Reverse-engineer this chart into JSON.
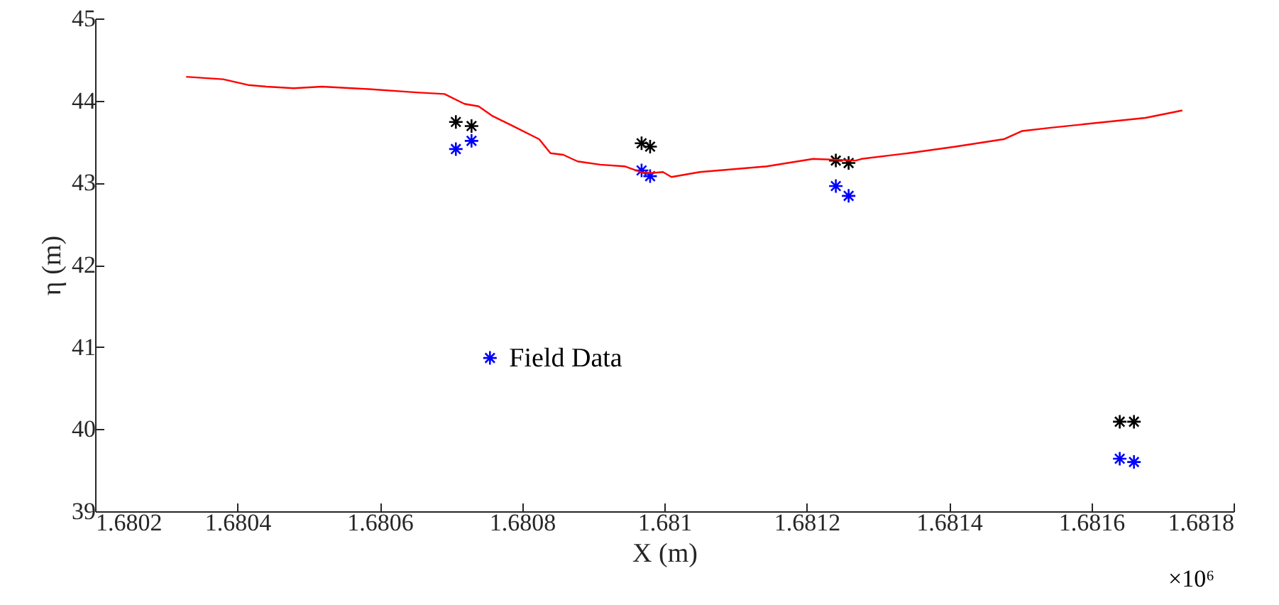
{
  "chart_data": {
    "type": "scatter",
    "xlabel": "X (m)",
    "ylabel": "η (m)",
    "annotations": [
      "×10⁶"
    ],
    "xlim": [
      1.6802,
      1.6818
    ],
    "xticks": [
      1.6802,
      1.6804,
      1.6806,
      1.6808,
      1.681,
      1.6812,
      1.6814,
      1.6816,
      1.6818
    ],
    "ylim": [
      39,
      45
    ],
    "yticks": [
      39,
      40,
      41,
      42,
      43,
      44,
      45
    ],
    "legend": "bottom",
    "marker": "cross",
    "series": [
      {
        "name": "Field Data",
        "color": "#0000ff",
        "x": [
          1.680707,
          1.680729,
          1.680968,
          1.68098,
          1.681241,
          1.681259,
          1.68164,
          1.68166
        ],
        "values": [
          43.41,
          43.51,
          43.15,
          43.08,
          42.96,
          42.84,
          39.64,
          39.6
        ]
      },
      {
        "color": "#000000",
        "x": [
          1.680707,
          1.680729,
          1.680968,
          1.68098,
          1.681241,
          1.681259,
          1.68164,
          1.68166
        ],
        "values": [
          43.74,
          43.69,
          43.48,
          43.44,
          43.27,
          43.24,
          40.09,
          40.09
        ]
      },
      {
        "type": "line",
        "color": "#ff0000",
        "marker": "none",
        "x": [
          1.680328,
          1.68038,
          1.680415,
          1.680441,
          1.680479,
          1.680519,
          1.680585,
          1.680651,
          1.680691,
          1.680719,
          1.680739,
          1.680759,
          1.680785,
          1.680824,
          1.68084,
          1.680858,
          1.680878,
          1.68091,
          1.680944,
          1.68097,
          1.680984,
          1.680998,
          1.68101,
          1.68105,
          1.681144,
          1.681209,
          1.681269,
          1.681277,
          1.681343,
          1.681409,
          1.681477,
          1.681503,
          1.681543,
          1.681676,
          1.681728
        ],
        "values": [
          44.29,
          44.26,
          44.19,
          44.17,
          44.15,
          44.17,
          44.14,
          44.1,
          44.08,
          43.96,
          43.93,
          43.81,
          43.7,
          43.53,
          43.36,
          43.34,
          43.26,
          43.22,
          43.2,
          43.12,
          43.12,
          43.13,
          43.07,
          43.13,
          43.2,
          43.29,
          43.27,
          43.29,
          43.36,
          43.44,
          43.53,
          43.63,
          43.67,
          43.79,
          43.88
        ]
      }
    ]
  }
}
